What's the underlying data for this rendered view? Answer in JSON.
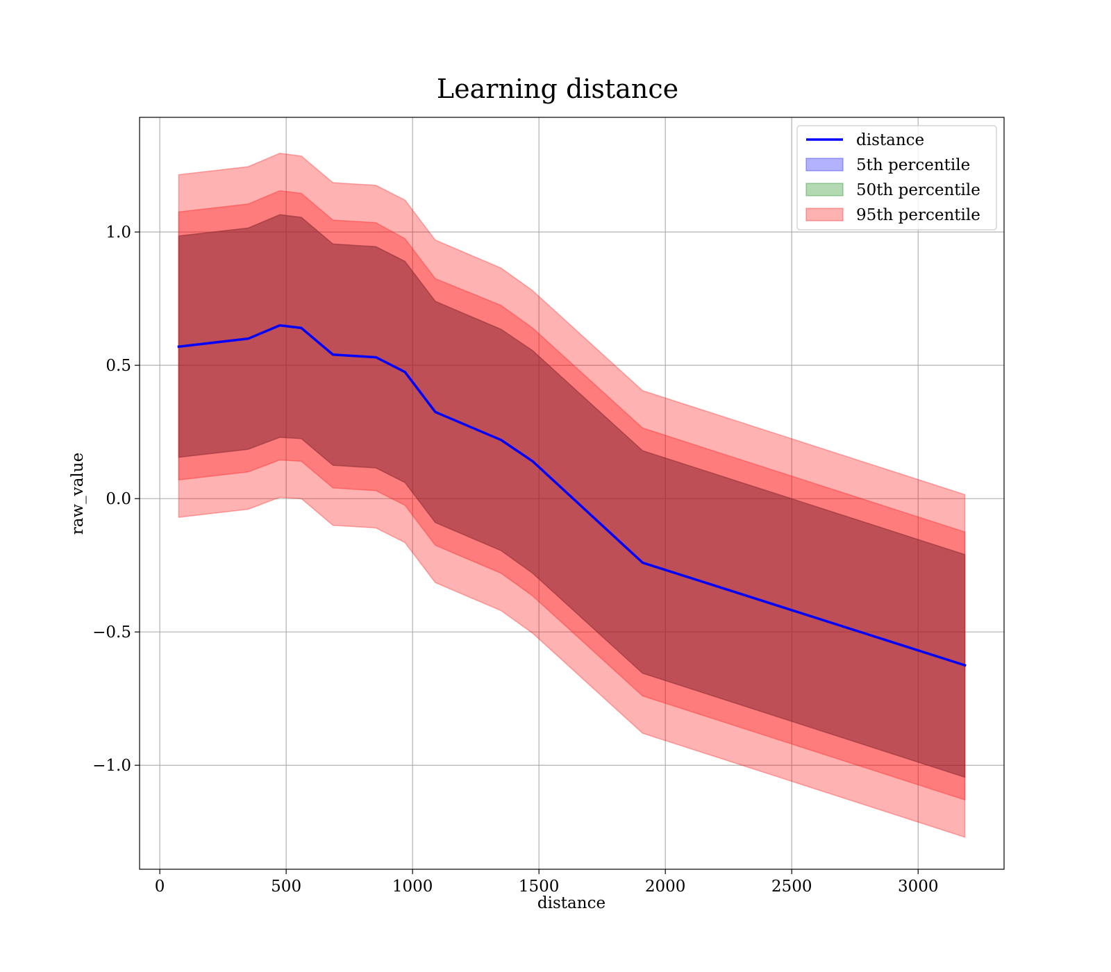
{
  "chart_data": {
    "type": "line",
    "title": "Learning distance",
    "xlabel": "distance",
    "ylabel": "raw_value",
    "xlim": [
      -80,
      3340
    ],
    "ylim": [
      -1.39,
      1.43
    ],
    "xticks": [
      0,
      500,
      1000,
      1500,
      2000,
      2500,
      3000
    ],
    "xtick_labels": [
      "0",
      "500",
      "1000",
      "1500",
      "2000",
      "2500",
      "3000"
    ],
    "yticks": [
      -1.0,
      -0.5,
      0.0,
      0.5,
      1.0
    ],
    "ytick_labels": [
      "−1.0",
      "−0.5",
      "0.0",
      "0.5",
      "1.0"
    ],
    "grid": true,
    "legend_position": "top-right",
    "x": [
      75,
      350,
      475,
      560,
      685,
      855,
      970,
      1090,
      1350,
      1475,
      1910,
      3185
    ],
    "series": [
      {
        "name": "distance",
        "kind": "line",
        "color": "#0000ff",
        "values": [
          0.57,
          0.6,
          0.65,
          0.64,
          0.54,
          0.53,
          0.475,
          0.325,
          0.22,
          0.14,
          -0.24,
          -0.625
        ]
      },
      {
        "name": "5th percentile",
        "kind": "band",
        "color": "#0000ff",
        "lower": [
          0.155,
          0.185,
          0.23,
          0.225,
          0.125,
          0.115,
          0.06,
          -0.09,
          -0.195,
          -0.28,
          -0.655,
          -1.045
        ],
        "upper": [
          0.985,
          1.015,
          1.065,
          1.055,
          0.955,
          0.945,
          0.89,
          0.74,
          0.635,
          0.555,
          0.18,
          -0.21
        ]
      },
      {
        "name": "50th percentile",
        "kind": "band",
        "color": "#008000",
        "lower": [
          0.155,
          0.185,
          0.23,
          0.225,
          0.125,
          0.115,
          0.06,
          -0.09,
          -0.195,
          -0.28,
          -0.655,
          -1.045
        ],
        "upper": [
          0.985,
          1.015,
          1.065,
          1.055,
          0.955,
          0.945,
          0.89,
          0.74,
          0.635,
          0.555,
          0.18,
          -0.21
        ]
      },
      {
        "name": "95th percentile",
        "kind": "band",
        "color": "#ff0000",
        "lower": [
          0.07,
          0.1,
          0.145,
          0.14,
          0.04,
          0.03,
          -0.025,
          -0.175,
          -0.28,
          -0.365,
          -0.74,
          -1.13
        ],
        "upper": [
          1.075,
          1.105,
          1.155,
          1.145,
          1.045,
          1.035,
          0.975,
          0.825,
          0.725,
          0.64,
          0.265,
          -0.125
        ]
      },
      {
        "name": "95th percentile",
        "kind": "band",
        "color": "#ff0000",
        "lower": [
          -0.07,
          -0.04,
          0.005,
          0.0,
          -0.1,
          -0.11,
          -0.165,
          -0.315,
          -0.42,
          -0.505,
          -0.88,
          -1.27
        ],
        "upper": [
          1.215,
          1.245,
          1.295,
          1.285,
          1.185,
          1.175,
          1.12,
          0.97,
          0.865,
          0.78,
          0.405,
          0.015
        ]
      }
    ],
    "legend": [
      {
        "label": "distance",
        "kind": "line",
        "color": "#0000ff"
      },
      {
        "label": "5th percentile",
        "kind": "patch",
        "color": "#0000ff"
      },
      {
        "label": "50th percentile",
        "kind": "patch",
        "color": "#008000"
      },
      {
        "label": "95th percentile",
        "kind": "patch",
        "color": "#ff0000"
      }
    ]
  }
}
